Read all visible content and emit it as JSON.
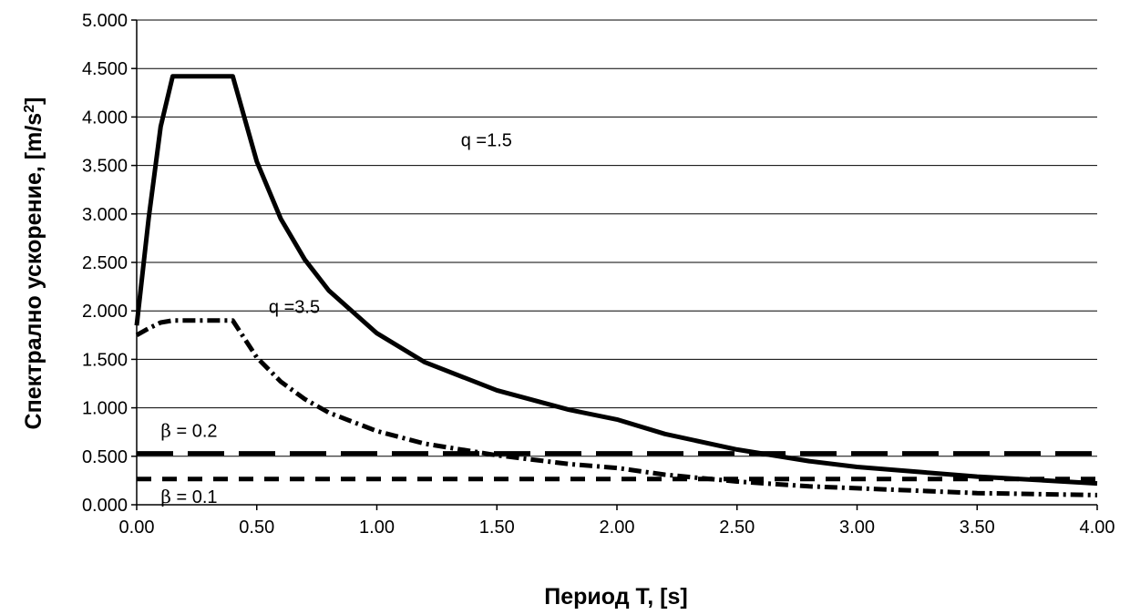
{
  "chart_data": {
    "type": "line",
    "xlabel": "Период Т, [s]",
    "ylabel": "Спектрално ускорение, [m/s",
    "ylabel_sup": "2",
    "ylabel_end": "]",
    "xlim": [
      0,
      4
    ],
    "ylim": [
      0,
      5
    ],
    "x_ticks": [
      "0.00",
      "0.50",
      "1.00",
      "1.50",
      "2.00",
      "2.50",
      "3.00",
      "3.50",
      "4.00"
    ],
    "y_ticks": [
      "0.000",
      "0.500",
      "1.000",
      "1.500",
      "2.000",
      "2.500",
      "3.000",
      "3.500",
      "4.000",
      "4.500",
      "5.000"
    ],
    "grid": "horizontal",
    "legend": "none",
    "series": [
      {
        "name": "q =1.5",
        "style": "thick-solid",
        "x": [
          0.0,
          0.05,
          0.1,
          0.15,
          0.4,
          0.5,
          0.6,
          0.7,
          0.8,
          1.0,
          1.2,
          1.5,
          1.8,
          2.0,
          2.2,
          2.5,
          2.8,
          3.0,
          3.5,
          4.0
        ],
        "y": [
          1.85,
          2.96,
          3.9,
          4.42,
          4.42,
          3.54,
          2.95,
          2.53,
          2.21,
          1.77,
          1.47,
          1.18,
          0.98,
          0.88,
          0.73,
          0.57,
          0.45,
          0.39,
          0.29,
          0.22
        ]
      },
      {
        "name": "q =3.5",
        "style": "dashed-irregular",
        "x": [
          0.0,
          0.05,
          0.1,
          0.15,
          0.4,
          0.5,
          0.6,
          0.7,
          0.8,
          1.0,
          1.2,
          1.5,
          1.8,
          2.0,
          2.2,
          2.5,
          2.8,
          3.0,
          3.5,
          4.0
        ],
        "y": [
          1.75,
          1.82,
          1.88,
          1.9,
          1.9,
          1.52,
          1.27,
          1.09,
          0.95,
          0.76,
          0.63,
          0.51,
          0.42,
          0.38,
          0.31,
          0.24,
          0.19,
          0.17,
          0.12,
          0.1
        ]
      },
      {
        "name": "β = 0.2",
        "style": "long-dash",
        "x": [
          0.0,
          4.0
        ],
        "y": [
          0.53,
          0.53
        ]
      },
      {
        "name": "β = 0.1",
        "style": "short-dash",
        "x": [
          0.0,
          4.0
        ],
        "y": [
          0.265,
          0.265
        ]
      }
    ],
    "annotations": [
      {
        "text": "q =1.5",
        "x": 1.35,
        "y": 3.7
      },
      {
        "text": "q =3.5",
        "x": 0.55,
        "y": 1.98
      },
      {
        "text": "β = 0.2",
        "x": 0.1,
        "y": 0.7
      },
      {
        "text": "β = 0.1",
        "x": 0.1,
        "y": 0.02
      }
    ]
  }
}
